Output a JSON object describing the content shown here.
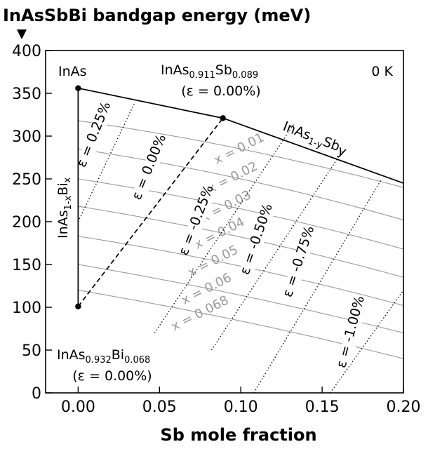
{
  "chart_data": {
    "type": "line",
    "title": "InAsSbBi bandgap energy (meV)",
    "xlabel": "Sb mole fraction",
    "ylabel": "",
    "xlim": [
      -0.02,
      0.2
    ],
    "ylim": [
      0,
      400
    ],
    "xticks": [
      "0.00",
      "0.05",
      "0.10",
      "0.15",
      "0.20"
    ],
    "yticks": [
      "0",
      "50",
      "100",
      "150",
      "200",
      "250",
      "300",
      "350",
      "400"
    ],
    "corner_label": "0 K",
    "points": [
      {
        "name": "InAs",
        "x": 0.0,
        "y": 356
      },
      {
        "name": "InAs0.911Sb0.089",
        "x": 0.089,
        "y": 321
      },
      {
        "name": "InAs0.932Bi0.068",
        "x": 0.0,
        "y": 101
      }
    ],
    "point_labels": {
      "inas": "InAs",
      "inassb_base": "InAs",
      "inassb_sub1": "0.911",
      "inassb_mid": "Sb",
      "inassb_sub2": "0.089",
      "inassb_strain": "(ε = 0.00%)",
      "inasbi_base": "InAs",
      "inasbi_sub1": "0.932",
      "inasbi_mid": "Bi",
      "inasbi_sub2": "0.068",
      "inasbi_strain": "(ε = 0.00%)"
    },
    "series": [
      {
        "name": "InAs1-ySby",
        "x": [
          0.0,
          0.089,
          0.2
        ],
        "y": [
          356,
          321,
          245
        ]
      },
      {
        "name": "InAs1-xBix",
        "x": [
          0.0,
          0.0
        ],
        "y": [
          356,
          101
        ]
      },
      {
        "name": "ε = 0.00%",
        "x": [
          0.0,
          0.089
        ],
        "y": [
          101,
          321
        ]
      }
    ],
    "series_labels": {
      "inassb_base": "InAs",
      "inassb_sub": "1-y",
      "inassb_mid": "Sb",
      "inassb_end": "y",
      "inasbi_base": "InAs",
      "inasbi_sub": "1-x",
      "inasbi_mid": "Bi",
      "inasbi_end": "x"
    },
    "contours_bi": [
      {
        "label": "x = 0.01",
        "x": [
          0.0,
          0.1,
          0.2
        ],
        "y": [
          318,
          285,
          240
        ]
      },
      {
        "label": "x = 0.02",
        "x": [
          0.0,
          0.1,
          0.2
        ],
        "y": [
          285,
          250,
          202
        ]
      },
      {
        "label": "x = 0.03",
        "x": [
          0.0,
          0.1,
          0.2
        ],
        "y": [
          250,
          215,
          168
        ]
      },
      {
        "label": "x = 0.04",
        "x": [
          0.0,
          0.1,
          0.2
        ],
        "y": [
          218,
          182,
          135
        ]
      },
      {
        "label": "x = 0.05",
        "x": [
          0.0,
          0.1,
          0.2
        ],
        "y": [
          183,
          148,
          102
        ]
      },
      {
        "label": "x = 0.06",
        "x": [
          0.0,
          0.1,
          0.2
        ],
        "y": [
          150,
          114,
          70
        ]
      },
      {
        "label": "x = 0.068",
        "x": [
          0.0,
          0.1,
          0.2
        ],
        "y": [
          120,
          84,
          40
        ]
      }
    ],
    "contours_strain": [
      {
        "label": "ε = 0.25%",
        "x": [
          0.0,
          0.035
        ],
        "y": [
          200,
          340
        ]
      },
      {
        "label": "ε = 0.00%",
        "x": [
          0.0,
          0.089
        ],
        "y": [
          101,
          321
        ]
      },
      {
        "label": "ε = -0.25%",
        "x": [
          0.047,
          0.133
        ],
        "y": [
          70,
          315
        ]
      },
      {
        "label": "ε = -0.50%",
        "x": [
          0.082,
          0.163
        ],
        "y": [
          50,
          284
        ]
      },
      {
        "label": "ε = -0.75%",
        "x": [
          0.108,
          0.186
        ],
        "y": [
          0,
          248
        ]
      },
      {
        "label": "ε = -1.00%",
        "x": [
          0.155,
          0.2
        ],
        "y": [
          0,
          120
        ]
      }
    ]
  }
}
